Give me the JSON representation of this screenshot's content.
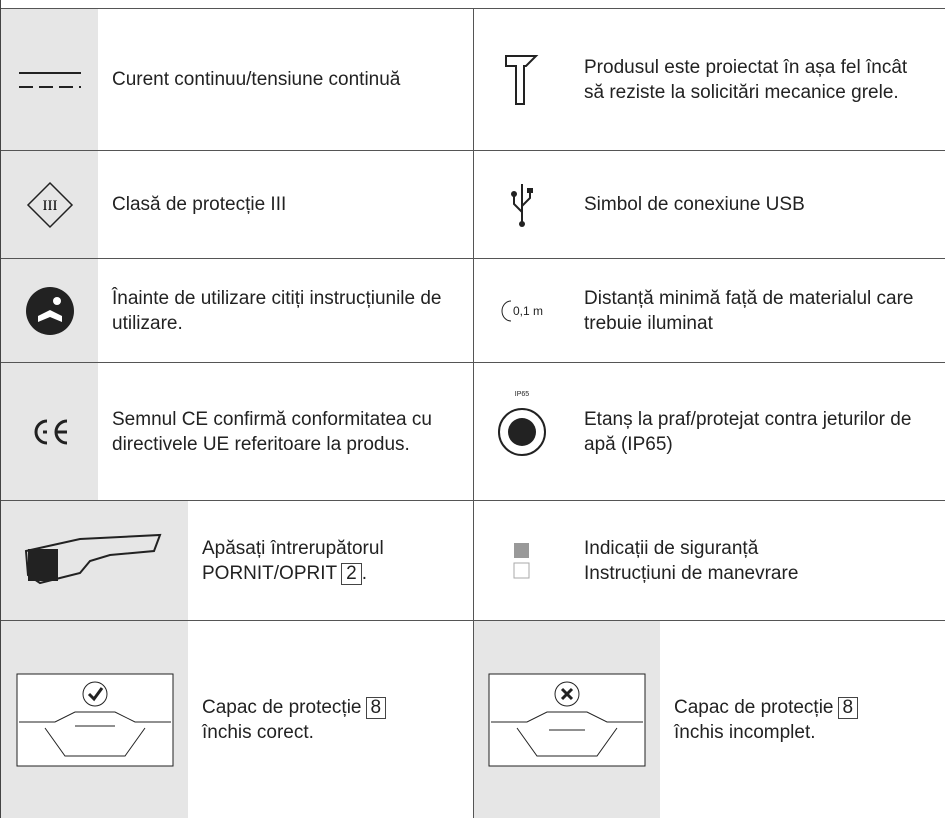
{
  "rows": [
    {
      "left": {
        "text": "Curent continuu/tensiune continuă"
      },
      "right": {
        "text": "Produsul este proiectat în așa fel încât să reziste la solicitări mecanice grele."
      }
    },
    {
      "left": {
        "text": "Clasă de protecție III"
      },
      "right": {
        "text": "Simbol de conexiune USB"
      }
    },
    {
      "left": {
        "text": "Înainte de utilizare citiți instrucțiunile de utilizare."
      },
      "right": {
        "text": "Distanță minimă față de materialul care trebuie iluminat",
        "icon_label": "0,1 m"
      }
    },
    {
      "left": {
        "text": "Semnul CE confirmă conformitatea cu directivele UE referitoare la produs."
      },
      "right": {
        "text": "Etanș la praf/protejat contra jeturilor de apă (IP65)",
        "icon_label": "IP65"
      }
    },
    {
      "left": {
        "text": "Apăsați întrerupătorul PORNIT/OPRIT",
        "ref": "2",
        "end": "."
      },
      "right": {
        "lines": [
          "Indicații de siguranță",
          "Instrucțiuni de manevrare"
        ]
      }
    },
    {
      "left": {
        "text": "Capac de protecție",
        "ref": "8",
        "text2": "închis corect."
      },
      "right": {
        "text": "Capac de protecție",
        "ref": "8",
        "text2": "închis incomplet."
      }
    }
  ]
}
